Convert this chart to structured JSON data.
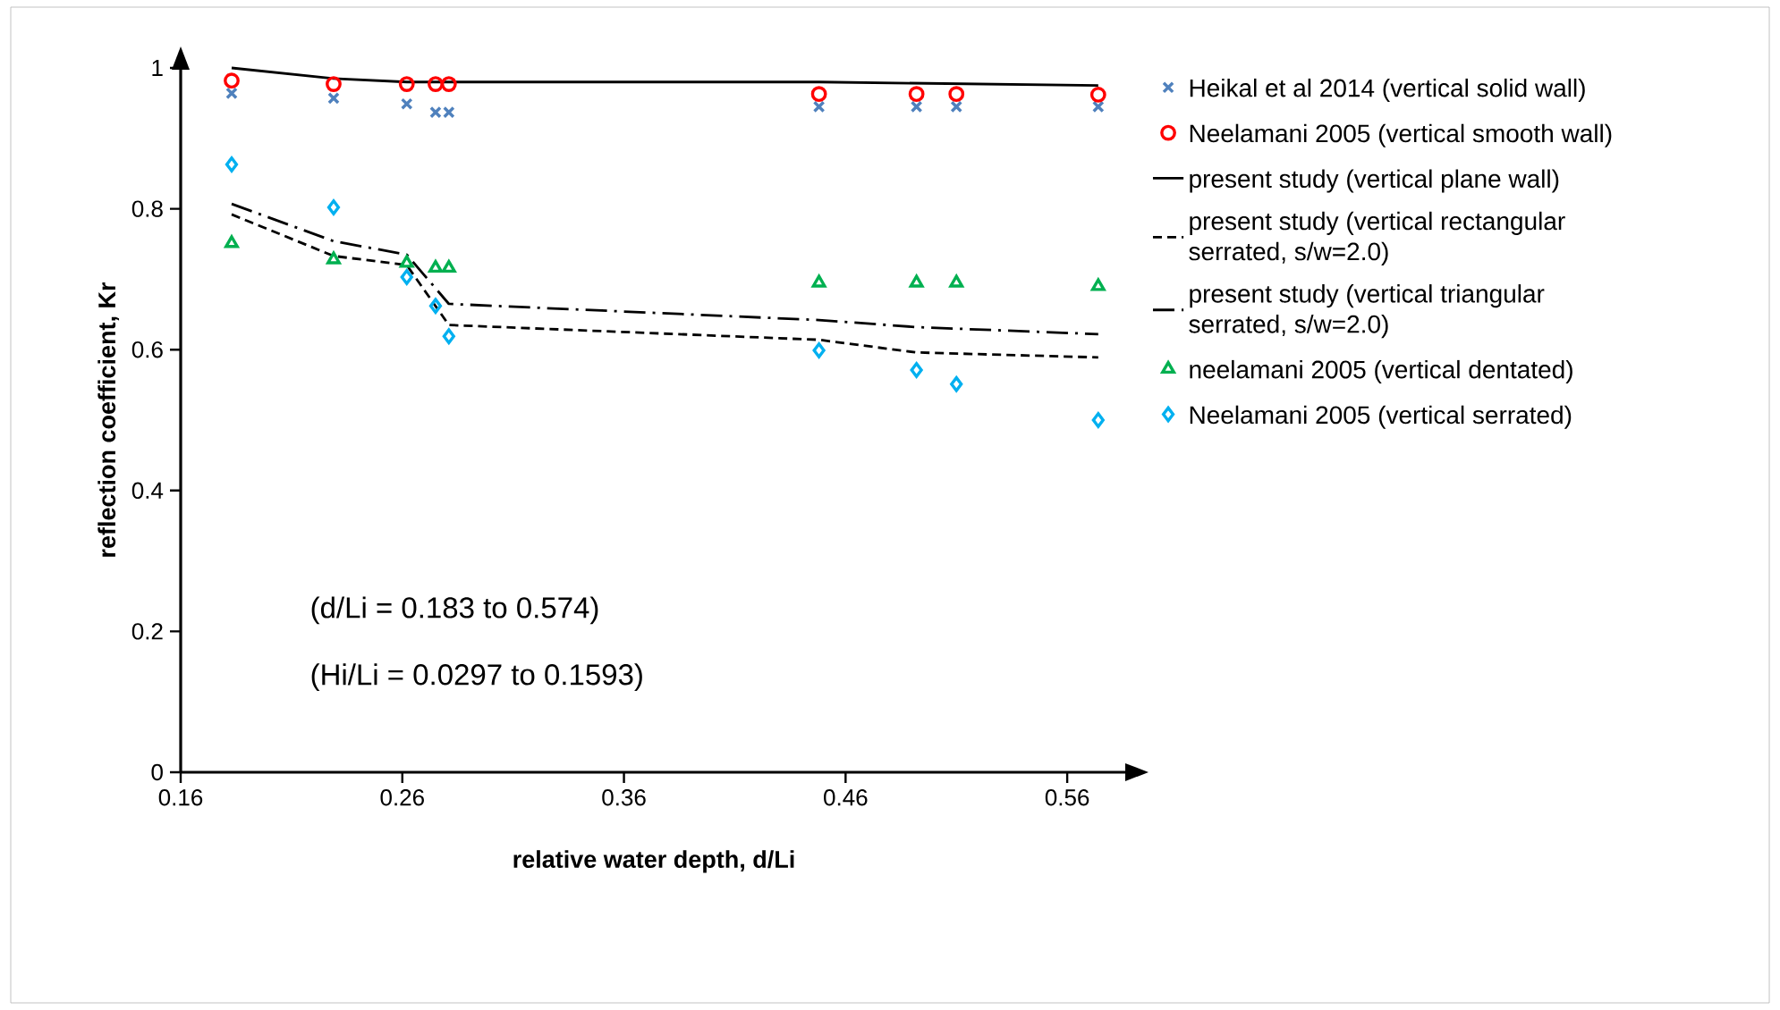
{
  "chart_data": {
    "type": "scatter",
    "xlabel": "relative water depth, d/Li",
    "ylabel": "reflection coefficient, Kr",
    "xlim": [
      0.16,
      0.587
    ],
    "ylim": [
      0,
      1
    ],
    "xticks": [
      0.16,
      0.26,
      0.36,
      0.46,
      0.56
    ],
    "yticks": [
      0,
      0.2,
      0.4,
      0.6,
      0.8,
      1
    ],
    "legend": "right",
    "grid": false,
    "series": [
      {
        "name": "Heikal et al 2014 (vertical solid wall)",
        "marker": "cross",
        "color": "#4f81bd",
        "x": [
          0.183,
          0.229,
          0.262,
          0.275,
          0.281,
          0.448,
          0.492,
          0.51,
          0.574
        ],
        "values": [
          0.964,
          0.957,
          0.949,
          0.937,
          0.937,
          0.945,
          0.945,
          0.945,
          0.945
        ]
      },
      {
        "name": "Neelamani 2005 (vertical smooth wall)",
        "marker": "circle",
        "color": "#ff0000",
        "x": [
          0.183,
          0.229,
          0.262,
          0.275,
          0.281,
          0.448,
          0.492,
          0.51,
          0.574
        ],
        "values": [
          0.982,
          0.977,
          0.977,
          0.977,
          0.977,
          0.963,
          0.963,
          0.963,
          0.962
        ]
      },
      {
        "name": "present study (vertical plane wall)",
        "type": "line",
        "line_style": "solid",
        "color": "#000000",
        "x": [
          0.183,
          0.229,
          0.262,
          0.281,
          0.448,
          0.574
        ],
        "values": [
          1.0,
          0.985,
          0.98,
          0.98,
          0.98,
          0.975
        ]
      },
      {
        "name": "present study (vertical rectangular serrated, s/w=2.0)",
        "type": "line",
        "line_style": "dashed",
        "color": "#000000",
        "x": [
          0.183,
          0.229,
          0.262,
          0.281,
          0.448,
          0.492,
          0.574
        ],
        "values": [
          0.792,
          0.733,
          0.72,
          0.635,
          0.614,
          0.596,
          0.589
        ]
      },
      {
        "name": "present study (vertical triangular serrated, s/w=2.0)",
        "type": "line",
        "line_style": "dashdot",
        "color": "#000000",
        "x": [
          0.183,
          0.229,
          0.262,
          0.281,
          0.448,
          0.492,
          0.574
        ],
        "values": [
          0.807,
          0.754,
          0.735,
          0.665,
          0.642,
          0.632,
          0.622
        ]
      },
      {
        "name": "neelamani 2005 (vertical dentated)",
        "marker": "triangle",
        "color": "#00b050",
        "x": [
          0.183,
          0.229,
          0.262,
          0.275,
          0.281,
          0.448,
          0.492,
          0.51,
          0.574
        ],
        "values": [
          0.751,
          0.728,
          0.723,
          0.716,
          0.716,
          0.695,
          0.695,
          0.695,
          0.69
        ]
      },
      {
        "name": "Neelamani 2005 (vertical serrated)",
        "marker": "diamond",
        "color": "#00b0f0",
        "x": [
          0.183,
          0.229,
          0.262,
          0.275,
          0.281,
          0.448,
          0.492,
          0.51,
          0.574
        ],
        "values": [
          0.863,
          0.802,
          0.703,
          0.662,
          0.619,
          0.599,
          0.571,
          0.551,
          0.5
        ]
      }
    ],
    "annotations": [
      "(d/Li = 0.183 to 0.574)",
      "(Hi/Li =  0.0297 to 0.1593)"
    ]
  }
}
